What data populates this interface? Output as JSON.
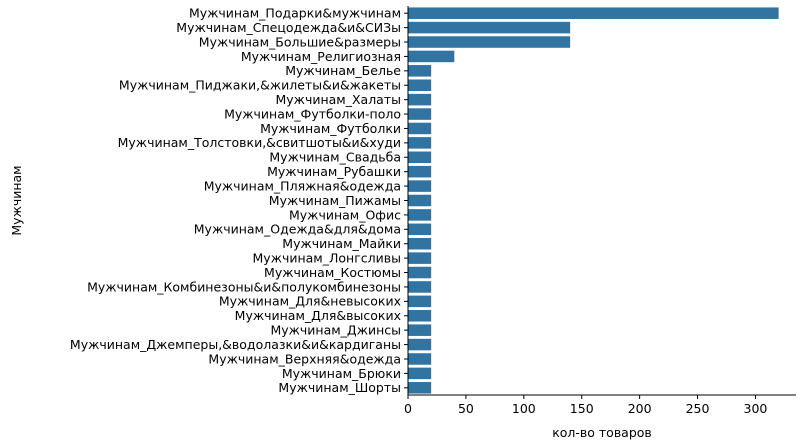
{
  "chart_data": {
    "type": "bar",
    "orientation": "horizontal",
    "xlabel": "кол-во товаров",
    "ylabel": "Мужчинам",
    "xlim": [
      0,
      335
    ],
    "xticks": [
      0,
      50,
      100,
      150,
      200,
      250,
      300
    ],
    "bar_color": "#3274a1",
    "grid": false,
    "categories": [
      "Мужчинам_Подарки&мужчинам",
      "Мужчинам_Спецодежда&и&СИЗы",
      "Мужчинам_Большие&размеры",
      "Мужчинам_Религиозная",
      "Мужчинам_Белье",
      "Мужчинам_Пиджаки,&жилеты&и&жакеты",
      "Мужчинам_Халаты",
      "Мужчинам_Футболки-поло",
      "Мужчинам_Футболки",
      "Мужчинам_Толстовки,&свитшоты&и&худи",
      "Мужчинам_Свадьба",
      "Мужчинам_Рубашки",
      "Мужчинам_Пляжная&одежда",
      "Мужчинам_Пижамы",
      "Мужчинам_Офис",
      "Мужчинам_Одежда&для&дома",
      "Мужчинам_Майки",
      "Мужчинам_Лонгсливы",
      "Мужчинам_Костюмы",
      "Мужчинам_Комбинезоны&и&полукомбинезоны",
      "Мужчинам_Для&невысоких",
      "Мужчинам_Для&высоких",
      "Мужчинам_Джинсы",
      "Мужчинам_Джемперы,&водолазки&и&кардиганы",
      "Мужчинам_Верхняя&одежда",
      "Мужчинам_Брюки",
      "Мужчинам_Шорты"
    ],
    "values": [
      320,
      140,
      140,
      40,
      20,
      20,
      20,
      20,
      20,
      20,
      20,
      20,
      20,
      20,
      20,
      20,
      20,
      20,
      20,
      20,
      20,
      20,
      20,
      20,
      20,
      20,
      20
    ]
  }
}
